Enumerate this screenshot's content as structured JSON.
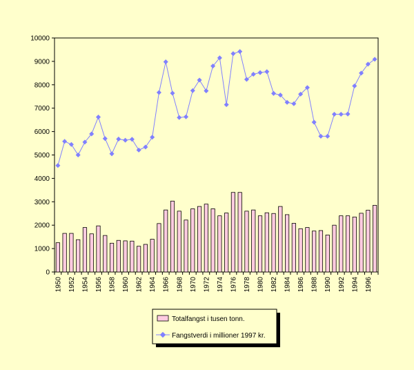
{
  "chart_data": {
    "type": "bar",
    "title": "",
    "xlabel": "",
    "ylabel": "",
    "ylim": [
      0,
      10000
    ],
    "yticks": [
      0,
      1000,
      2000,
      3000,
      4000,
      5000,
      6000,
      7000,
      8000,
      9000,
      10000
    ],
    "categories": [
      1950,
      1951,
      1952,
      1953,
      1954,
      1955,
      1956,
      1957,
      1958,
      1959,
      1960,
      1961,
      1962,
      1963,
      1964,
      1965,
      1966,
      1967,
      1968,
      1969,
      1970,
      1971,
      1972,
      1973,
      1974,
      1975,
      1976,
      1977,
      1978,
      1979,
      1980,
      1981,
      1982,
      1983,
      1984,
      1985,
      1986,
      1987,
      1988,
      1989,
      1990,
      1991,
      1992,
      1993,
      1994,
      1995,
      1996,
      1997
    ],
    "xtick_labels": [
      "1950",
      "1952",
      "1954",
      "1956",
      "1958",
      "1960",
      "1962",
      "1964",
      "1966",
      "1968",
      "1970",
      "1972",
      "1974",
      "1976",
      "1978",
      "1980",
      "1982",
      "1984",
      "1986",
      "1988",
      "1990",
      "1992",
      "1994",
      "1996"
    ],
    "series": [
      {
        "name": "Totalfangst i tusen tonn.",
        "type": "bar",
        "color": "#FFCCE0",
        "values": [
          1250,
          1650,
          1650,
          1380,
          1900,
          1630,
          1970,
          1560,
          1230,
          1350,
          1330,
          1320,
          1100,
          1180,
          1400,
          2070,
          2650,
          3030,
          2600,
          2220,
          2700,
          2800,
          2900,
          2700,
          2400,
          2520,
          3400,
          3400,
          2600,
          2650,
          2400,
          2530,
          2500,
          2800,
          2450,
          2080,
          1850,
          1900,
          1750,
          1770,
          1580,
          2000,
          2400,
          2400,
          2350,
          2510,
          2640,
          2850
        ]
      },
      {
        "name": "Fangstverdi i millioner 1997 kr.",
        "type": "line",
        "color": "#8080FF",
        "values": [
          4550,
          5580,
          5450,
          5000,
          5550,
          5900,
          6620,
          5700,
          5050,
          5680,
          5630,
          5670,
          5210,
          5340,
          5760,
          7670,
          8980,
          7640,
          6600,
          6630,
          7750,
          8200,
          7740,
          8800,
          9150,
          7150,
          9330,
          9420,
          8230,
          8450,
          8520,
          8560,
          7630,
          7560,
          7250,
          7190,
          7600,
          7880,
          6400,
          5800,
          5800,
          6740,
          6740,
          6750,
          7950,
          8500,
          8880,
          9090
        ]
      }
    ],
    "legend_position": "bottom-center"
  }
}
